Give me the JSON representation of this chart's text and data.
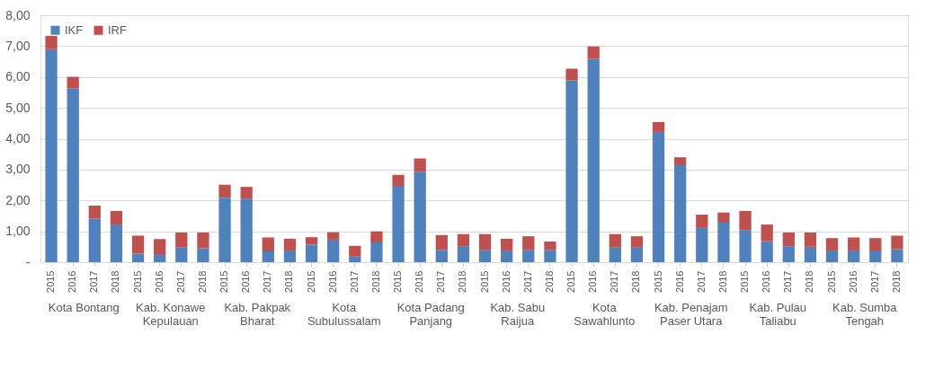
{
  "chart_data": {
    "type": "bar",
    "stacked": true,
    "categories": [
      "2015",
      "2016",
      "2017",
      "2018",
      "2015",
      "2016",
      "2017",
      "2018",
      "2015",
      "2016",
      "2017",
      "2018",
      "2015",
      "2016",
      "2017",
      "2018",
      "2015",
      "2016",
      "2017",
      "2018",
      "2015",
      "2016",
      "2017",
      "2018",
      "2015",
      "2016",
      "2017",
      "2018",
      "2015",
      "2016",
      "2017",
      "2018",
      "2015",
      "2016",
      "2017",
      "2018",
      "2015",
      "2016",
      "2017",
      "2018"
    ],
    "series": [
      {
        "name": "IKF",
        "color": "#4f81bd",
        "values": [
          6.9,
          5.64,
          1.41,
          1.22,
          0.28,
          0.26,
          0.49,
          0.45,
          2.09,
          2.06,
          0.35,
          0.38,
          0.57,
          0.73,
          0.18,
          0.64,
          2.47,
          2.93,
          0.4,
          0.52,
          0.4,
          0.38,
          0.4,
          0.4,
          5.89,
          6.59,
          0.47,
          0.47,
          4.22,
          3.14,
          1.11,
          1.28,
          1.04,
          0.68,
          0.52,
          0.5,
          0.38,
          0.38,
          0.35,
          0.42
        ]
      },
      {
        "name": "IRF",
        "color": "#c0504d",
        "values": [
          0.43,
          0.37,
          0.42,
          0.44,
          0.58,
          0.49,
          0.47,
          0.51,
          0.42,
          0.38,
          0.45,
          0.38,
          0.24,
          0.24,
          0.35,
          0.36,
          0.36,
          0.43,
          0.48,
          0.39,
          0.51,
          0.38,
          0.44,
          0.27,
          0.38,
          0.4,
          0.44,
          0.37,
          0.32,
          0.26,
          0.43,
          0.33,
          0.62,
          0.54,
          0.44,
          0.46,
          0.4,
          0.42,
          0.43,
          0.44
        ]
      }
    ],
    "ylim": [
      0,
      8
    ],
    "yticks": [
      {
        "value": 0,
        "label": "-"
      },
      {
        "value": 1,
        "label": "1,00"
      },
      {
        "value": 2,
        "label": "2,00"
      },
      {
        "value": 3,
        "label": "3,00"
      },
      {
        "value": 4,
        "label": "4,00"
      },
      {
        "value": 5,
        "label": "5,00"
      },
      {
        "value": 6,
        "label": "6,00"
      },
      {
        "value": 7,
        "label": "7,00"
      },
      {
        "value": 8,
        "label": "8,00"
      }
    ],
    "grid": "y",
    "legend": "top left",
    "annotations": [
      "Kota Bontang",
      "Kab. Konawe\nKepulauan",
      "Kab. Pakpak\nBharat",
      "Kota\nSubulussalam",
      "Kota Padang\nPanjang",
      "Kab. Sabu\nRaijua",
      "Kota\nSawahlunto",
      "Kab. Penajam\nPaser Utara",
      "Kab. Pulau\nTaliabu",
      "Kab. Sumba\nTengah"
    ]
  }
}
